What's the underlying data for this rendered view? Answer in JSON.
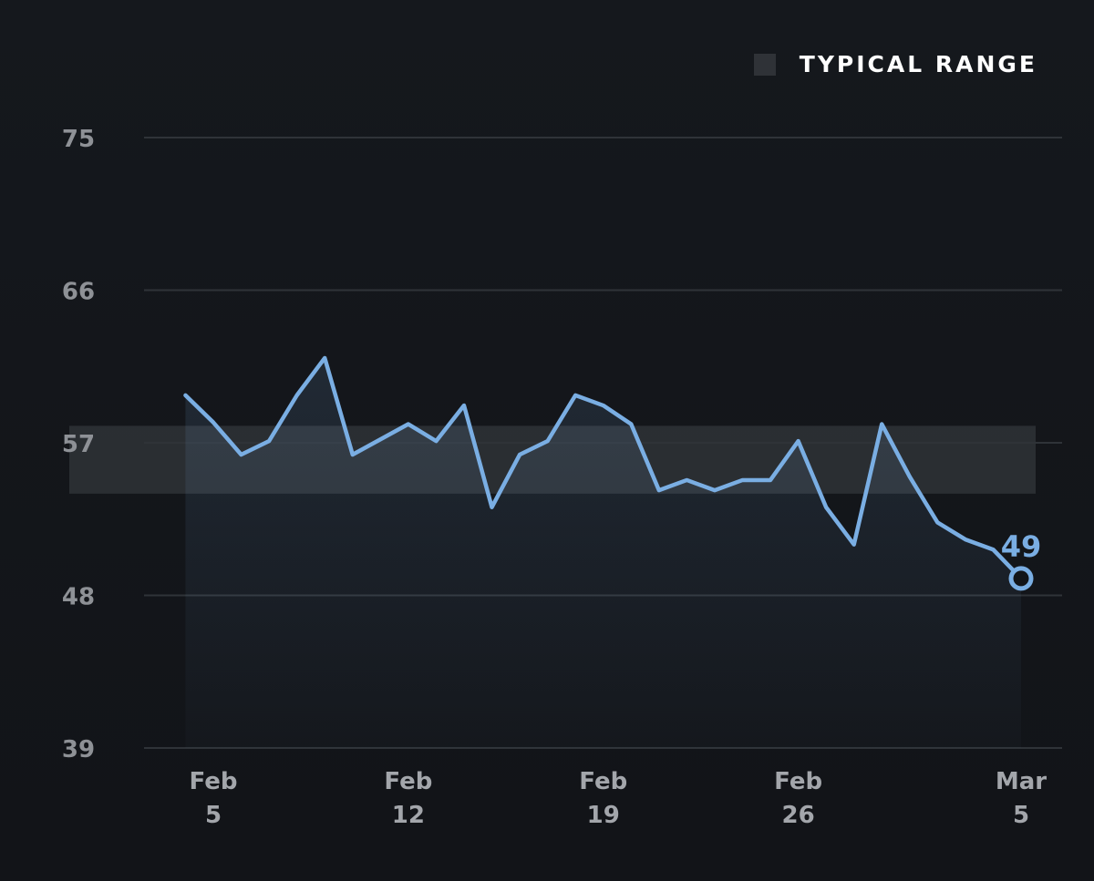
{
  "legend": {
    "label": "TYPICAL RANGE"
  },
  "colors": {
    "background": "#121418",
    "line": "#7aaee3",
    "typical_range": "#2f3237",
    "grid": "#2f3338",
    "axis_text": "#8e9196"
  },
  "chart_data": {
    "type": "line",
    "title": "",
    "xlabel": "",
    "ylabel": "",
    "ylim": [
      39,
      75
    ],
    "yticks": [
      75,
      66,
      57,
      48,
      39
    ],
    "grid": "horizontal",
    "legend_position": "top-right",
    "typical_range": [
      54,
      58
    ],
    "xticks": [
      {
        "date": "2024-02-05",
        "line1": "Feb",
        "line2": "5"
      },
      {
        "date": "2024-02-12",
        "line1": "Feb",
        "line2": "12"
      },
      {
        "date": "2024-02-19",
        "line1": "Feb",
        "line2": "19"
      },
      {
        "date": "2024-02-26",
        "line1": "Feb",
        "line2": "26"
      },
      {
        "date": "2024-03-05",
        "line1": "Mar",
        "line2": "5"
      }
    ],
    "x": [
      "2024-02-04",
      "2024-02-05",
      "2024-02-06",
      "2024-02-07",
      "2024-02-08",
      "2024-02-09",
      "2024-02-10",
      "2024-02-11",
      "2024-02-12",
      "2024-02-13",
      "2024-02-14",
      "2024-02-15",
      "2024-02-16",
      "2024-02-17",
      "2024-02-18",
      "2024-02-19",
      "2024-02-20",
      "2024-02-21",
      "2024-02-22",
      "2024-02-23",
      "2024-02-24",
      "2024-02-25",
      "2024-02-26",
      "2024-02-27",
      "2024-02-28",
      "2024-02-29",
      "2024-03-01",
      "2024-03-02",
      "2024-03-03",
      "2024-03-04",
      "2024-03-05"
    ],
    "series": [
      {
        "values": [
          59.8,
          58.2,
          56.3,
          57.1,
          59.8,
          62.0,
          56.3,
          57.2,
          58.1,
          57.1,
          59.2,
          53.2,
          56.3,
          57.1,
          59.8,
          59.2,
          58.1,
          54.2,
          54.8,
          54.2,
          54.8,
          54.8,
          57.1,
          53.2,
          51.0,
          58.1,
          55.0,
          52.3,
          51.3,
          50.7,
          49.0
        ]
      }
    ],
    "last_value_label": "49"
  }
}
